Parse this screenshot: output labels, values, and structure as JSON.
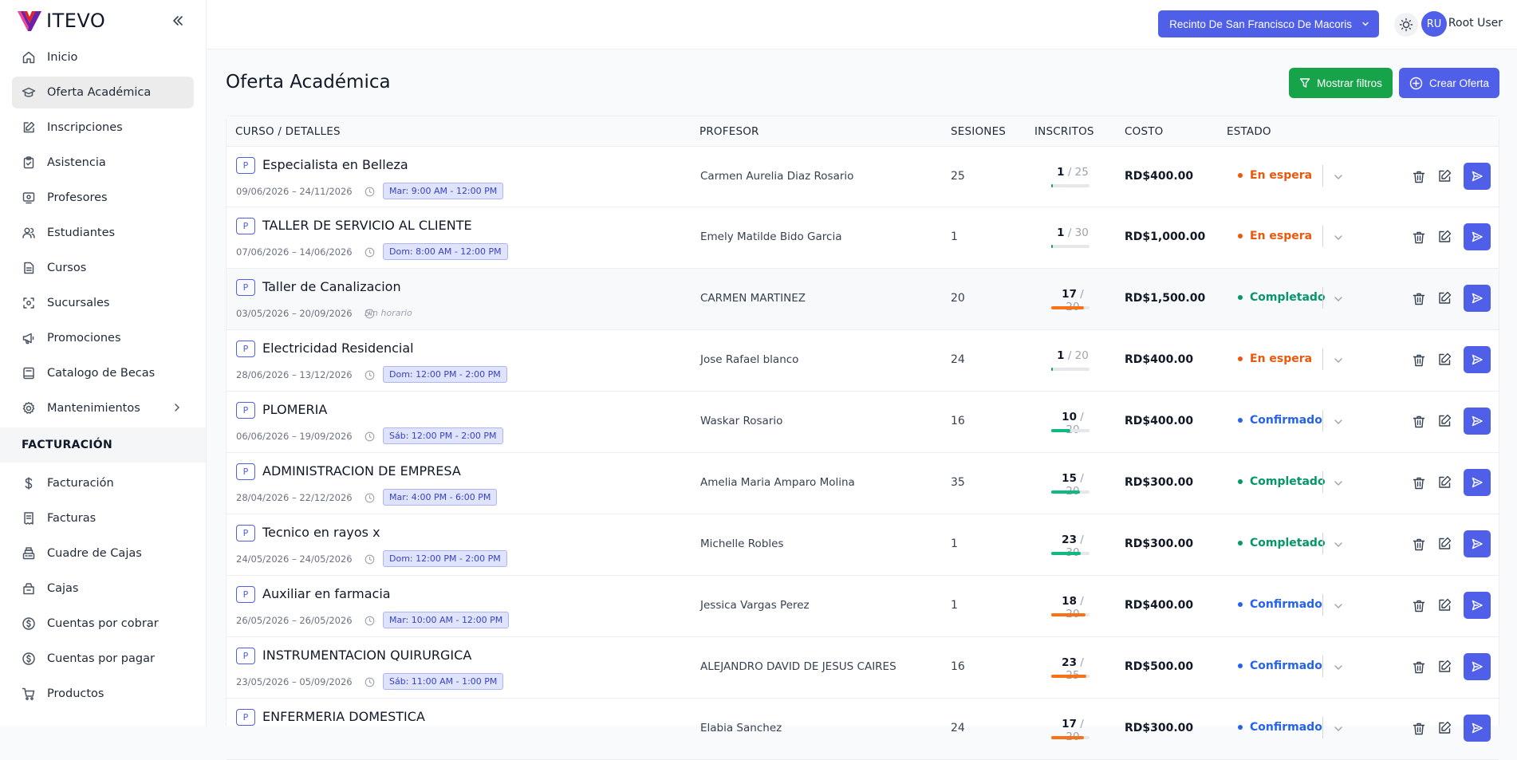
{
  "app": {
    "name": "ITEVO"
  },
  "sidebar": {
    "items": [
      {
        "label": "Inicio",
        "icon": "home-icon",
        "active": false
      },
      {
        "label": "Oferta Académica",
        "icon": "graduation-cap-icon",
        "active": true
      },
      {
        "label": "Inscripciones",
        "icon": "edit-icon",
        "active": false
      },
      {
        "label": "Asistencia",
        "icon": "clipboard-icon",
        "active": false
      },
      {
        "label": "Profesores",
        "icon": "presentation-icon",
        "active": false
      },
      {
        "label": "Estudiantes",
        "icon": "users-icon",
        "active": false
      },
      {
        "label": "Cursos",
        "icon": "document-icon",
        "active": false
      },
      {
        "label": "Sucursales",
        "icon": "location-icon",
        "active": false
      },
      {
        "label": "Promociones",
        "icon": "megaphone-icon",
        "active": false
      },
      {
        "label": "Catalogo de Becas",
        "icon": "book-icon",
        "active": false
      },
      {
        "label": "Mantenimientos",
        "icon": "gear-icon",
        "active": false,
        "has_submenu": true
      }
    ],
    "billing_section": "FACTURACIÓN",
    "billing_items": [
      {
        "label": "Facturación",
        "icon": "dollar-icon"
      },
      {
        "label": "Facturas",
        "icon": "invoice-icon"
      },
      {
        "label": "Cuadre de Cajas",
        "icon": "cash-register-icon"
      },
      {
        "label": "Cajas",
        "icon": "cash-box-icon"
      },
      {
        "label": "Cuentas por cobrar",
        "icon": "coin-icon"
      },
      {
        "label": "Cuentas por pagar",
        "icon": "coin-icon"
      },
      {
        "label": "Productos",
        "icon": "cart-icon"
      }
    ]
  },
  "topbar": {
    "campus": "Recinto De San Francisco De Macoris",
    "user_initials": "RU",
    "user_name": "Root User"
  },
  "page": {
    "title": "Oferta Académica",
    "filter_button": "Mostrar filtros",
    "create_button": "Crear Oferta"
  },
  "table": {
    "columns": [
      "CURSO / DETALLES",
      "PROFESOR",
      "SESIONES",
      "INSCRITOS",
      "COSTO",
      "ESTADO"
    ],
    "rows": [
      {
        "badge": "P",
        "title": "Especialista en Belleza",
        "dates": "09/06/2026 – 24/11/2026",
        "schedule": "Mar: 9:00 AM - 12:00 PM",
        "professor": "Carmen Aurelia Diaz Rosario",
        "sessions": "25",
        "enrolled": "1",
        "capacity": "/ 25",
        "fill": 0.04,
        "bar_color": "#16a34a",
        "cost": "RD$400.00",
        "status": "En espera",
        "status_color": "#ea580c"
      },
      {
        "badge": "P",
        "title": "TALLER DE SERVICIO AL CLIENTE",
        "dates": "07/06/2026 – 14/06/2026",
        "schedule": "Dom: 8:00 AM - 12:00 PM",
        "professor": "Emely Matilde Bido Garcia",
        "sessions": "1",
        "enrolled": "1",
        "capacity": "/ 30",
        "fill": 0.033,
        "bar_color": "#16a34a",
        "cost": "RD$1,000.00",
        "status": "En espera",
        "status_color": "#ea580c"
      },
      {
        "badge": "P",
        "title": "Taller de Canalizacion",
        "dates": "03/05/2026 – 20/09/2026",
        "schedule": "",
        "no_schedule": "Sin horario",
        "professor": "CARMEN MARTINEZ",
        "sessions": "20",
        "enrolled": "17",
        "capacity": "/ 20",
        "fill": 0.85,
        "bar_color": "#f97316",
        "cost": "RD$1,500.00",
        "status": "Completado",
        "status_color": "#059669",
        "highlight": true
      },
      {
        "badge": "P",
        "title": "Electricidad Residencial",
        "dates": "28/06/2026 – 13/12/2026",
        "schedule": "Dom: 12:00 PM - 2:00 PM",
        "professor": "Jose Rafael blanco",
        "sessions": "24",
        "enrolled": "1",
        "capacity": "/ 20",
        "fill": 0.05,
        "bar_color": "#16a34a",
        "cost": "RD$400.00",
        "status": "En espera",
        "status_color": "#ea580c"
      },
      {
        "badge": "P",
        "title": "PLOMERIA",
        "dates": "06/06/2026 – 19/09/2026",
        "schedule": "Sáb: 12:00 PM - 2:00 PM",
        "professor": "Waskar Rosario",
        "sessions": "16",
        "enrolled": "10",
        "capacity": "/ 20",
        "fill": 0.5,
        "bar_color": "#10b981",
        "cost": "RD$400.00",
        "status": "Confirmado",
        "status_color": "#2563eb"
      },
      {
        "badge": "P",
        "title": "ADMINISTRACION DE EMPRESA",
        "dates": "28/04/2026 – 22/12/2026",
        "schedule": "Mar: 4:00 PM - 6:00 PM",
        "professor": "Amelia Maria Amparo Molina",
        "sessions": "35",
        "enrolled": "15",
        "capacity": "/ 20",
        "fill": 0.75,
        "bar_color": "#10b981",
        "cost": "RD$300.00",
        "status": "Completado",
        "status_color": "#059669"
      },
      {
        "badge": "P",
        "title": "Tecnico en rayos x",
        "dates": "24/05/2026 – 24/05/2026",
        "schedule": "Dom: 12:00 PM - 2:00 PM",
        "professor": "Michelle Robles",
        "sessions": "1",
        "enrolled": "23",
        "capacity": "/ 30",
        "fill": 0.77,
        "bar_color": "#10b981",
        "cost": "RD$300.00",
        "status": "Completado",
        "status_color": "#059669"
      },
      {
        "badge": "P",
        "title": "Auxiliar en farmacia",
        "dates": "26/05/2026 – 26/05/2026",
        "schedule": "Mar: 10:00 AM - 12:00 PM",
        "professor": "Jessica Vargas Perez",
        "sessions": "1",
        "enrolled": "18",
        "capacity": "/ 20",
        "fill": 0.9,
        "bar_color": "#f97316",
        "cost": "RD$400.00",
        "status": "Confirmado",
        "status_color": "#2563eb"
      },
      {
        "badge": "P",
        "title": "INSTRUMENTACION QUIRURGICA",
        "dates": "23/05/2026 – 05/09/2026",
        "schedule": "Sáb: 11:00 AM - 1:00 PM",
        "professor": "ALEJANDRO DAVID DE JESUS CAIRES",
        "sessions": "16",
        "enrolled": "23",
        "capacity": "/ 25",
        "fill": 0.92,
        "bar_color": "#f97316",
        "cost": "RD$500.00",
        "status": "Confirmado",
        "status_color": "#2563eb"
      },
      {
        "badge": "P",
        "title": "ENFERMERIA DOMESTICA",
        "dates": "",
        "schedule": "",
        "professor": "Elabia Sanchez",
        "sessions": "24",
        "enrolled": "17",
        "capacity": "/ 20",
        "fill": 0.85,
        "bar_color": "#f97316",
        "cost": "RD$300.00",
        "status": "Confirmado",
        "status_color": "#2563eb"
      }
    ]
  },
  "colors": {
    "primary": "#4f5fe8",
    "success": "#16a34a"
  }
}
